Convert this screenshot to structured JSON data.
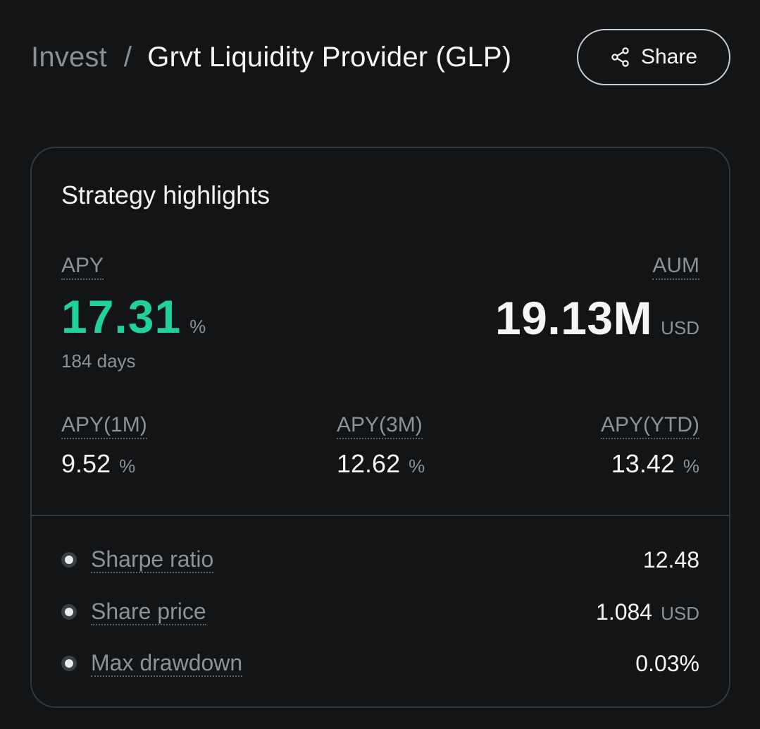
{
  "breadcrumb": {
    "parent": "Invest",
    "separator": "/",
    "current": "Grvt Liquidity Provider (GLP)"
  },
  "share": {
    "label": "Share",
    "icon": "share-icon"
  },
  "card": {
    "title": "Strategy highlights",
    "apy": {
      "label": "APY",
      "value": "17.31",
      "unit": "%",
      "period": "184 days",
      "color": "#1fd19a"
    },
    "aum": {
      "label": "AUM",
      "value": "19.13M",
      "unit": "USD"
    },
    "sub_stats": [
      {
        "label": "APY(1M)",
        "value": "9.52",
        "unit": "%"
      },
      {
        "label": "APY(3M)",
        "value": "12.62",
        "unit": "%"
      },
      {
        "label": "APY(YTD)",
        "value": "13.42",
        "unit": "%"
      }
    ],
    "metrics": [
      {
        "label": "Sharpe ratio",
        "value": "12.48",
        "unit": ""
      },
      {
        "label": "Share price",
        "value": "1.084",
        "unit": "USD"
      },
      {
        "label": "Max drawdown",
        "value": "0.03%",
        "unit": ""
      }
    ]
  }
}
